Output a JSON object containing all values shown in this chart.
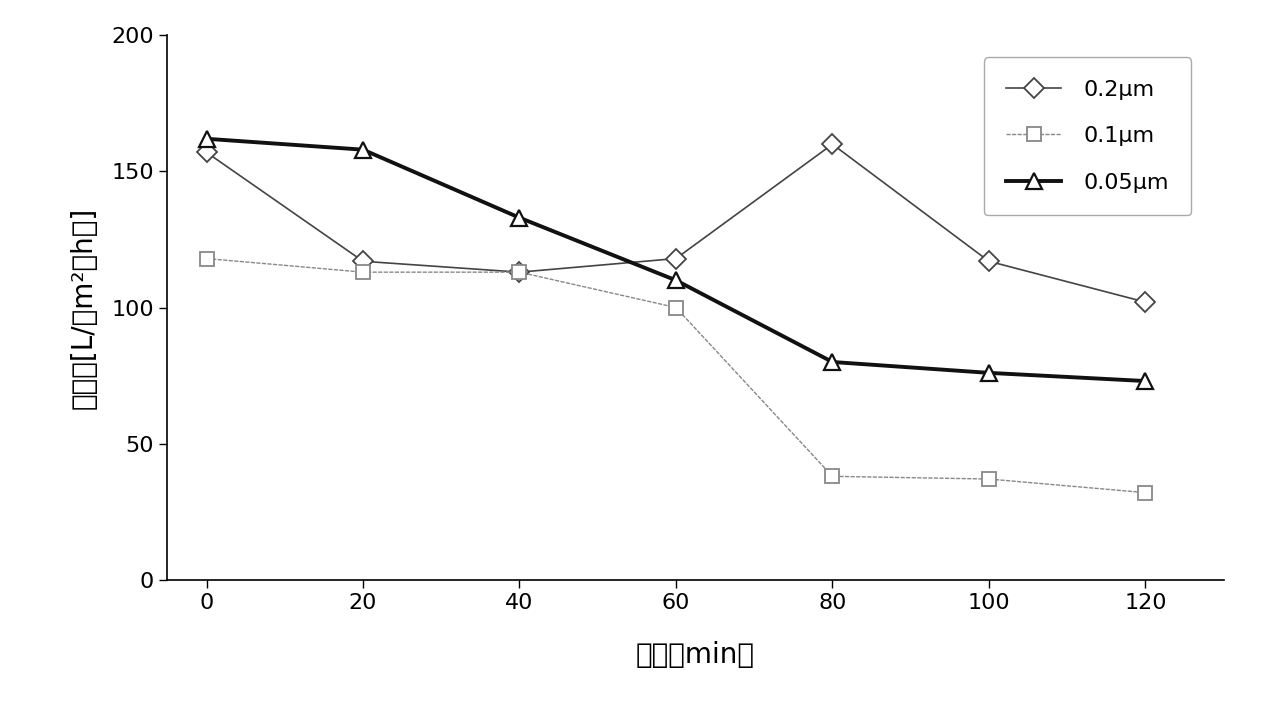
{
  "x": [
    0,
    20,
    40,
    60,
    80,
    100,
    120
  ],
  "series_02um": [
    157,
    117,
    113,
    118,
    160,
    117,
    102
  ],
  "series_01um": [
    118,
    113,
    113,
    100,
    38,
    37,
    32
  ],
  "series_005um": [
    162,
    158,
    133,
    110,
    80,
    76,
    73
  ],
  "color_02um": "#444444",
  "color_01um": "#888888",
  "color_005um": "#111111",
  "xlabel": "时间（min）",
  "ylabel_top": "膨通量[L/（m²．h）]",
  "ylim": [
    0,
    200
  ],
  "xlim": [
    -5,
    130
  ],
  "yticks": [
    0,
    50,
    100,
    150,
    200
  ],
  "xticks": [
    0,
    20,
    40,
    60,
    80,
    100,
    120
  ],
  "legend_02um": "0.2μm",
  "legend_01um": "0.1μm",
  "legend_005um": "0.05μm",
  "label_fontsize": 20,
  "tick_fontsize": 16,
  "legend_fontsize": 16,
  "background_color": "#ffffff"
}
